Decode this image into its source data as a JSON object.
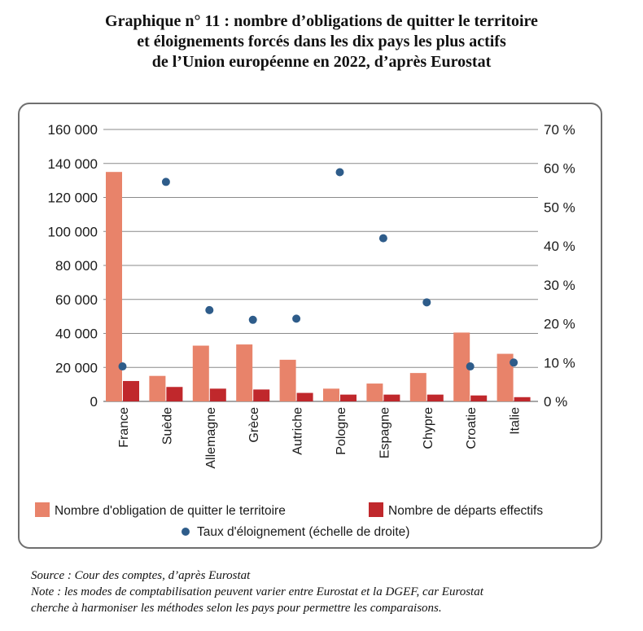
{
  "title_lines": [
    "Graphique n° 11 : nombre d’obligations de quitter le territoire",
    "et éloignements forcés dans les dix pays les plus actifs",
    "de l’Union européenne en 2022, d’après Eurostat"
  ],
  "source": "Source : Cour des comptes, d’après Eurostat",
  "note_lines": [
    "Note : les modes de comptabilisation peuvent varier entre Eurostat et la DGEF, car Eurostat",
    "cherche à harmoniser les méthodes selon les pays pour permettre les comparaisons."
  ],
  "colors": {
    "oqtf": "#e8836a",
    "departs": "#c0282c",
    "taux": "#2e5c8a",
    "grid": "#8a8a8a"
  },
  "chart_data": {
    "type": "bar",
    "categories": [
      "France",
      "Suède",
      "Allemagne",
      "Grèce",
      "Autriche",
      "Pologne",
      "Espagne",
      "Chypre",
      "Croatie",
      "Italie"
    ],
    "series": [
      {
        "name": "Nombre d'obligation de quitter le territoire",
        "type": "bar",
        "axis": "left",
        "values": [
          135000,
          15000,
          32800,
          33500,
          24500,
          7500,
          10500,
          16700,
          40500,
          28000
        ]
      },
      {
        "name": "Nombre de départs effectifs",
        "type": "bar",
        "axis": "left",
        "values": [
          12000,
          8500,
          7500,
          7000,
          5000,
          4000,
          4000,
          4000,
          3500,
          2500
        ]
      },
      {
        "name": "Taux d'éloignement (échelle de droite)",
        "type": "scatter",
        "axis": "right",
        "values": [
          9,
          56.5,
          23.5,
          21,
          21.3,
          59,
          42,
          25.5,
          9,
          10
        ]
      }
    ],
    "y_left": {
      "ylim": [
        0,
        160000
      ],
      "ticks": [
        0,
        20000,
        40000,
        60000,
        80000,
        100000,
        120000,
        140000,
        160000
      ],
      "tick_labels": [
        "0",
        "20 000",
        "40 000",
        "60 000",
        "80 000",
        "100 000",
        "120 000",
        "140 000",
        "160 000"
      ]
    },
    "y_right": {
      "ylim": [
        0,
        70
      ],
      "ticks": [
        0,
        10,
        20,
        30,
        40,
        50,
        60,
        70
      ],
      "tick_labels": [
        "0 %",
        "10 %",
        "20 %",
        "30 %",
        "40 %",
        "50 %",
        "60 %",
        "70 %"
      ]
    },
    "grid": true,
    "legend_position": "bottom"
  }
}
